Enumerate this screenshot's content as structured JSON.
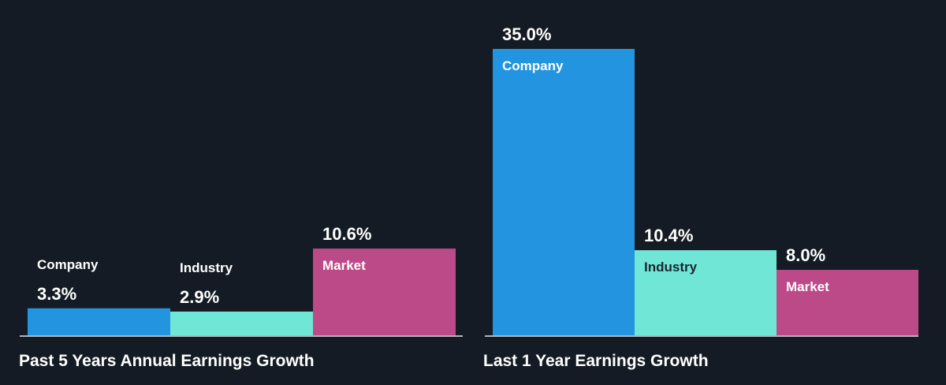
{
  "colors": {
    "background": "#151b24",
    "company": "#2394e0",
    "industry": "#70e6d6",
    "market": "#bd4a88",
    "baseline": "#ffffff",
    "label_on_dark": "#ffffff",
    "label_on_light": "#1b2430"
  },
  "chart_data": [
    {
      "type": "bar",
      "title": "Past 5 Years Annual Earnings Growth",
      "categories": [
        "Company",
        "Industry",
        "Market"
      ],
      "values": [
        3.3,
        2.9,
        10.6
      ],
      "value_labels": [
        "3.3%",
        "2.9%",
        "10.6%"
      ],
      "unit": "%",
      "ylim": [
        0,
        35
      ]
    },
    {
      "type": "bar",
      "title": "Last 1 Year Earnings Growth",
      "categories": [
        "Company",
        "Industry",
        "Market"
      ],
      "values": [
        35.0,
        10.4,
        8.0
      ],
      "value_labels": [
        "35.0%",
        "10.4%",
        "8.0%"
      ],
      "unit": "%",
      "ylim": [
        0,
        35
      ]
    }
  ]
}
